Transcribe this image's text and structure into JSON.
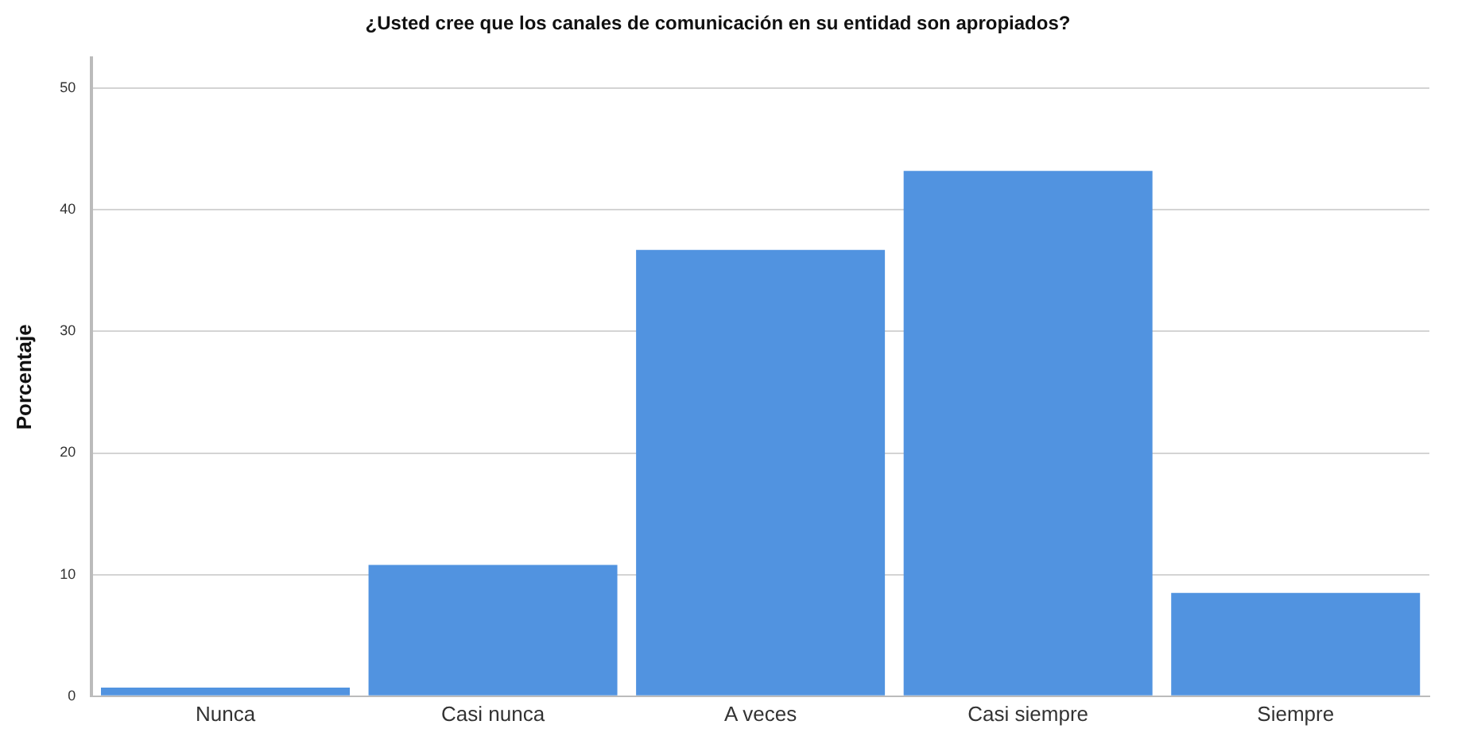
{
  "chart_data": {
    "type": "bar",
    "title": "¿Usted cree que los canales de comunicación en su entidad son apropiados?",
    "ylabel": "Porcentaje",
    "categories": [
      "Nunca",
      "Casi nunca",
      "A veces",
      "Casi siempre",
      "Siempre"
    ],
    "values": [
      0.7,
      10.8,
      36.7,
      43.2,
      8.5
    ],
    "color": "#5193e0",
    "ylim": [
      0,
      52.5
    ],
    "yticks": [
      0,
      10,
      20,
      30,
      40,
      50
    ],
    "grid": "y",
    "legend": false
  }
}
